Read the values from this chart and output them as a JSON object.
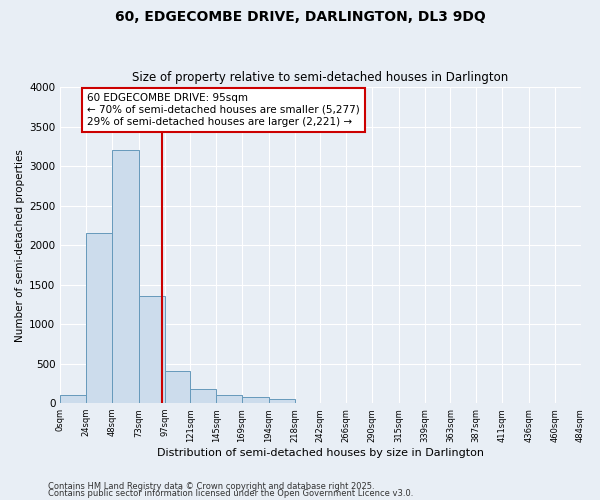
{
  "title1": "60, EDGECOMBE DRIVE, DARLINGTON, DL3 9DQ",
  "title2": "Size of property relative to semi-detached houses in Darlington",
  "xlabel": "Distribution of semi-detached houses by size in Darlington",
  "ylabel": "Number of semi-detached properties",
  "bar_edges": [
    0,
    24,
    48,
    73,
    97,
    121,
    145,
    169,
    194,
    218,
    242,
    266,
    290,
    315,
    339,
    363,
    387,
    411,
    436,
    460,
    484
  ],
  "bar_heights": [
    100,
    2150,
    3200,
    1350,
    400,
    175,
    100,
    75,
    50,
    0,
    0,
    0,
    0,
    0,
    0,
    0,
    0,
    0,
    0,
    0
  ],
  "bar_color": "#ccdcec",
  "bar_edgecolor": "#6699bb",
  "vline_x": 95,
  "vline_color": "#cc0000",
  "annotation_title": "60 EDGECOMBE DRIVE: 95sqm",
  "annotation_line1": "← 70% of semi-detached houses are smaller (5,277)",
  "annotation_line2": "29% of semi-detached houses are larger (2,221) →",
  "annotation_box_edgecolor": "#cc0000",
  "ylim": [
    0,
    4000
  ],
  "yticks": [
    0,
    500,
    1000,
    1500,
    2000,
    2500,
    3000,
    3500,
    4000
  ],
  "xtick_labels": [
    "0sqm",
    "24sqm",
    "48sqm",
    "73sqm",
    "97sqm",
    "121sqm",
    "145sqm",
    "169sqm",
    "194sqm",
    "218sqm",
    "242sqm",
    "266sqm",
    "290sqm",
    "315sqm",
    "339sqm",
    "363sqm",
    "387sqm",
    "411sqm",
    "436sqm",
    "460sqm",
    "484sqm"
  ],
  "footer1": "Contains HM Land Registry data © Crown copyright and database right 2025.",
  "footer2": "Contains public sector information licensed under the Open Government Licence v3.0.",
  "bg_color": "#e8eef5",
  "plot_bg_color": "#e8eef5",
  "grid_color": "#ffffff"
}
